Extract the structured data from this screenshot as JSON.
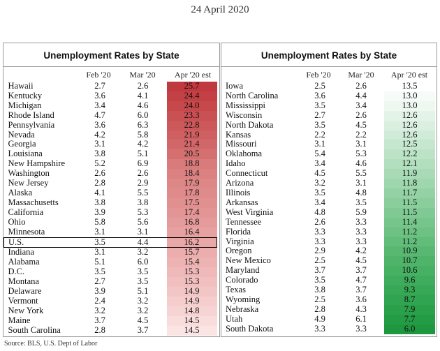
{
  "date": "24 April 2020",
  "left_panel": {
    "title": "Unemployment Rates by State",
    "headers": [
      "Feb '20",
      "Mar '20",
      "Apr '20 est"
    ],
    "rows": [
      {
        "state": "Hawaii",
        "feb": "2.7",
        "mar": "2.6",
        "apr": "25.7",
        "bg": "#c0393e"
      },
      {
        "state": "Kentucky",
        "feb": "3.6",
        "mar": "4.1",
        "apr": "24.4",
        "bg": "#c34145"
      },
      {
        "state": "Michigan",
        "feb": "3.4",
        "mar": "4.6",
        "apr": "24.0",
        "bg": "#c6484b"
      },
      {
        "state": "Rhode Island",
        "feb": "4.7",
        "mar": "6.0",
        "apr": "23.3",
        "bg": "#c95053"
      },
      {
        "state": "Pennsylvania",
        "feb": "3.6",
        "mar": "6.3",
        "apr": "22.8",
        "bg": "#cc585a"
      },
      {
        "state": "Nevada",
        "feb": "4.2",
        "mar": "5.8",
        "apr": "21.9",
        "bg": "#cf6062"
      },
      {
        "state": "Georgia",
        "feb": "3.1",
        "mar": "4.2",
        "apr": "21.4",
        "bg": "#d26769"
      },
      {
        "state": "Louisiana",
        "feb": "3.8",
        "mar": "5.1",
        "apr": "20.5",
        "bg": "#d57071"
      },
      {
        "state": "New Hampshire",
        "feb": "5.2",
        "mar": "6.9",
        "apr": "18.8",
        "bg": "#d97b7b"
      },
      {
        "state": "Washington",
        "feb": "2.6",
        "mar": "2.6",
        "apr": "18.4",
        "bg": "#db8181"
      },
      {
        "state": "New Jersey",
        "feb": "2.8",
        "mar": "2.9",
        "apr": "17.9",
        "bg": "#dd8787"
      },
      {
        "state": "Alaska",
        "feb": "4.1",
        "mar": "5.5",
        "apr": "17.8",
        "bg": "#df8b8b"
      },
      {
        "state": "Massachusetts",
        "feb": "3.8",
        "mar": "3.8",
        "apr": "17.5",
        "bg": "#e19090"
      },
      {
        "state": "California",
        "feb": "3.9",
        "mar": "5.3",
        "apr": "17.4",
        "bg": "#e39595"
      },
      {
        "state": "Ohio",
        "feb": "5.8",
        "mar": "5.6",
        "apr": "16.8",
        "bg": "#e59b9b"
      },
      {
        "state": "Minnesota",
        "feb": "3.1",
        "mar": "3.1",
        "apr": "16.4",
        "bg": "#e7a1a1"
      },
      {
        "state": "U.S.",
        "feb": "3.5",
        "mar": "4.4",
        "apr": "16.2",
        "bg": "#e9a7a7",
        "highlight": true
      },
      {
        "state": "Indiana",
        "feb": "3.1",
        "mar": "3.2",
        "apr": "15.7",
        "bg": "#ebadad"
      },
      {
        "state": "Alabama",
        "feb": "5.1",
        "mar": "6.0",
        "apr": "15.4",
        "bg": "#edb3b3"
      },
      {
        "state": "D.C.",
        "feb": "3.5",
        "mar": "3.5",
        "apr": "15.3",
        "bg": "#efb9b9"
      },
      {
        "state": "Montana",
        "feb": "2.7",
        "mar": "3.5",
        "apr": "15.3",
        "bg": "#f1bfbf"
      },
      {
        "state": "Delaware",
        "feb": "3.9",
        "mar": "5.1",
        "apr": "14.9",
        "bg": "#f3c6c6"
      },
      {
        "state": "Vermont",
        "feb": "2.4",
        "mar": "3.2",
        "apr": "14.9",
        "bg": "#f5cdcd"
      },
      {
        "state": "New York",
        "feb": "3.2",
        "mar": "3.2",
        "apr": "14.8",
        "bg": "#f7d4d4"
      },
      {
        "state": "Maine",
        "feb": "3.7",
        "mar": "4.5",
        "apr": "14.5",
        "bg": "#f9dcdc"
      },
      {
        "state": "South Carolina",
        "feb": "2.8",
        "mar": "3.7",
        "apr": "14.5",
        "bg": "#fbe4e4"
      }
    ]
  },
  "right_panel": {
    "title": "Unemployment Rates by State",
    "headers": [
      "Feb '20",
      "Mar '20",
      "Apr '20 est"
    ],
    "rows": [
      {
        "state": "Iowa",
        "feb": "2.5",
        "mar": "2.6",
        "apr": "13.5",
        "bg": "#ffffff"
      },
      {
        "state": "North Carolina",
        "feb": "3.6",
        "mar": "4.4",
        "apr": "13.0",
        "bg": "#f7fbf8"
      },
      {
        "state": "Mississippi",
        "feb": "3.5",
        "mar": "3.4",
        "apr": "13.0",
        "bg": "#eef8f1"
      },
      {
        "state": "Wisconsin",
        "feb": "2.7",
        "mar": "2.6",
        "apr": "12.6",
        "bg": "#e4f3e8"
      },
      {
        "state": "North Dakota",
        "feb": "3.5",
        "mar": "4.5",
        "apr": "12.6",
        "bg": "#daefe0"
      },
      {
        "state": "Kansas",
        "feb": "2.2",
        "mar": "2.2",
        "apr": "12.6",
        "bg": "#d0ebd8"
      },
      {
        "state": "Missouri",
        "feb": "3.1",
        "mar": "3.1",
        "apr": "12.5",
        "bg": "#c6e7cf"
      },
      {
        "state": "Oklahoma",
        "feb": "5.4",
        "mar": "5.3",
        "apr": "12.2",
        "bg": "#bce3c6"
      },
      {
        "state": "Idaho",
        "feb": "3.4",
        "mar": "4.6",
        "apr": "12.1",
        "bg": "#b2dfbe"
      },
      {
        "state": "Connecticut",
        "feb": "4.5",
        "mar": "5.5",
        "apr": "11.9",
        "bg": "#a8dab6"
      },
      {
        "state": "Arizona",
        "feb": "3.2",
        "mar": "3.1",
        "apr": "11.8",
        "bg": "#9ed6ad"
      },
      {
        "state": "Illinois",
        "feb": "3.5",
        "mar": "4.8",
        "apr": "11.7",
        "bg": "#94d2a5"
      },
      {
        "state": "Arkansas",
        "feb": "3.4",
        "mar": "3.5",
        "apr": "11.5",
        "bg": "#8ace9c"
      },
      {
        "state": "West Virginia",
        "feb": "4.8",
        "mar": "5.9",
        "apr": "11.5",
        "bg": "#80c994"
      },
      {
        "state": "Tennessee",
        "feb": "2.6",
        "mar": "3.3",
        "apr": "11.4",
        "bg": "#76c58b"
      },
      {
        "state": "Florida",
        "feb": "3.3",
        "mar": "3.3",
        "apr": "11.2",
        "bg": "#6cc183"
      },
      {
        "state": "Virginia",
        "feb": "3.3",
        "mar": "3.3",
        "apr": "11.2",
        "bg": "#62bd7a"
      },
      {
        "state": "Oregon",
        "feb": "2.9",
        "mar": "4.2",
        "apr": "10.9",
        "bg": "#58b872"
      },
      {
        "state": "New Mexico",
        "feb": "2.5",
        "mar": "4.5",
        "apr": "10.7",
        "bg": "#4fb46a"
      },
      {
        "state": "Maryland",
        "feb": "3.7",
        "mar": "3.7",
        "apr": "10.6",
        "bg": "#46b063"
      },
      {
        "state": "Colorado",
        "feb": "3.5",
        "mar": "4.7",
        "apr": "9.6",
        "bg": "#3eac5c"
      },
      {
        "state": "Texas",
        "feb": "3.8",
        "mar": "3.7",
        "apr": "9.3",
        "bg": "#37a856"
      },
      {
        "state": "Wyoming",
        "feb": "2.5",
        "mar": "3.6",
        "apr": "8.7",
        "bg": "#30a450"
      },
      {
        "state": "Nebraska",
        "feb": "2.8",
        "mar": "4.3",
        "apr": "7.9",
        "bg": "#2aa04a"
      },
      {
        "state": "Utah",
        "feb": "4.9",
        "mar": "6.1",
        "apr": "7.7",
        "bg": "#249c45"
      },
      {
        "state": "South Dakota",
        "feb": "3.3",
        "mar": "3.3",
        "apr": "6.0",
        "bg": "#1e9840"
      }
    ]
  },
  "source": "Source: BLS, U.S. Dept of Labor"
}
